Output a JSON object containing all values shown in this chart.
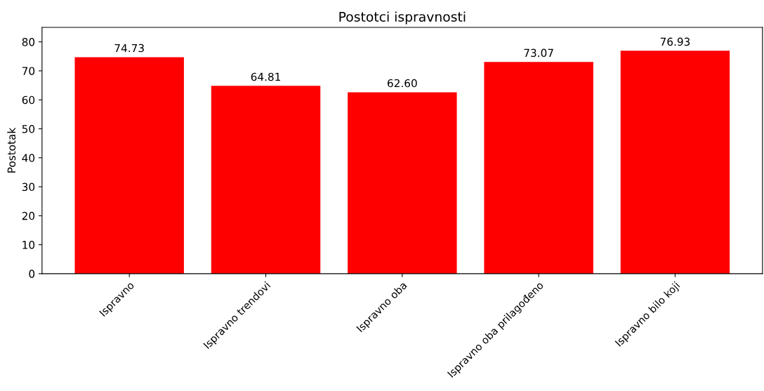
{
  "chart_data": {
    "type": "bar",
    "title": "Postotci ispravnosti",
    "ylabel": "Postotak",
    "categories": [
      "Ispravno",
      "Ispravno trendovi",
      "Ispravno oba",
      "Ispravno oba prilagođeno",
      "Ispravno bilo koji"
    ],
    "values": [
      74.73,
      64.81,
      62.6,
      73.07,
      76.93
    ],
    "value_labels": [
      "74.73",
      "64.81",
      "62.60",
      "73.07",
      "76.93"
    ],
    "color": "#ff0000",
    "ylim": [
      0,
      85
    ],
    "yticks": [
      0,
      10,
      20,
      30,
      40,
      50,
      60,
      70,
      80
    ]
  }
}
